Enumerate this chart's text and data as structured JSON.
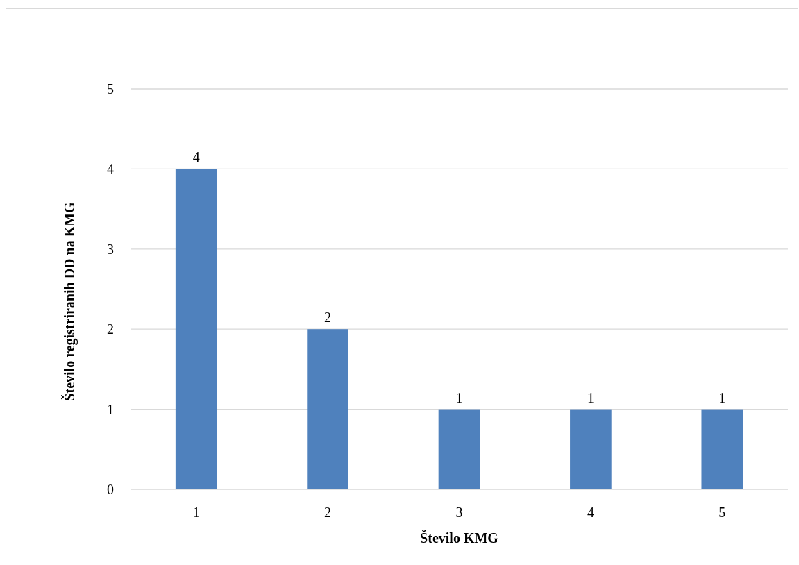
{
  "chart_data": {
    "type": "bar",
    "xlabel": "Število KMG",
    "ylabel": "Število registriranih DD na KMG",
    "categories": [
      "1",
      "2",
      "3",
      "4",
      "5"
    ],
    "values": [
      4,
      2,
      1,
      1,
      1
    ],
    "color": "#4f81bd",
    "ylim": [
      0,
      5
    ],
    "yticks": [
      0,
      1,
      2,
      3,
      4,
      5
    ],
    "grid": "y",
    "data_labels": true
  }
}
